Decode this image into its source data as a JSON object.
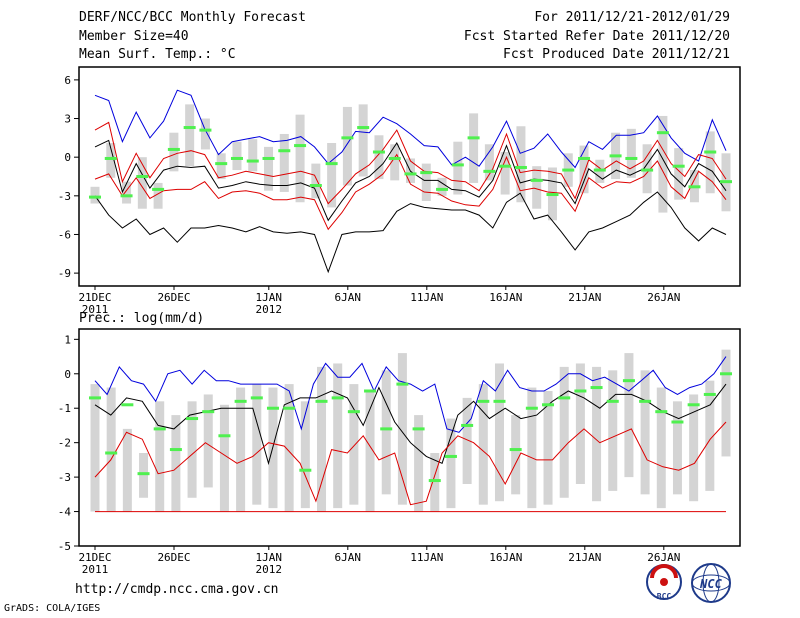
{
  "header": {
    "title": "DERF/NCC/BCC Monthly Forecast",
    "member_size": "Member Size=40",
    "variable": "Mean Surf. Temp.: °C",
    "period": "For 2011/12/21-2012/01/29",
    "started": "Fcst Started Refer Date 2011/12/20",
    "produced": "Fcst Produced Date 2011/12/21"
  },
  "footer": {
    "url": "http://cmdp.ncc.cma.gov.cn",
    "grads": "GrADS: COLA/IGES",
    "logo_bcc": "BCC",
    "logo_ncc": "NCC"
  },
  "colors": {
    "box": "#d4d4d4",
    "mean": "#000000",
    "upper": "#0000dd",
    "lower": "#dd0000",
    "median": "#4ff04f"
  },
  "chart_data": [
    {
      "type": "line",
      "title": "Mean Surf. Temp.: °C",
      "x_tick_labels": [
        "21DEC",
        "26DEC",
        "1JAN",
        "6JAN",
        "11JAN",
        "16JAN",
        "21JAN",
        "26JAN"
      ],
      "x_tick_days": [
        1,
        6,
        12,
        17,
        22,
        27,
        32,
        37
      ],
      "x_year_labels": [
        {
          "day": 1,
          "label": "2011"
        },
        {
          "day": 12,
          "label": "2012"
        }
      ],
      "ylim": [
        -10,
        7
      ],
      "yticks": [
        -9,
        -6,
        -3,
        0,
        3,
        6
      ],
      "days": 40,
      "series": [
        {
          "name": "upper",
          "values": [
            4.8,
            4.4,
            1.2,
            3.5,
            1.5,
            2.8,
            5.2,
            4.8,
            2.2,
            0.2,
            1.2,
            1.4,
            1.6,
            1.2,
            1.3,
            1.6,
            0.8,
            -0.5,
            0.4,
            2.0,
            1.9,
            3.1,
            2.6,
            1.8,
            0.9,
            0.8,
            -0.6,
            0,
            -0.7,
            0.8,
            2.8,
            0.3,
            0.7,
            1.8,
            0.4,
            -0.8,
            1.2,
            0.6,
            1.7,
            1.7,
            1.9,
            3.2,
            1.5,
            0.3,
            -0.3,
            2.9,
            0.5
          ]
        },
        {
          "name": "mean",
          "values": [
            0.8,
            1.3,
            -2.7,
            -0.5,
            -2.4,
            -1.0,
            -0.7,
            -0.8,
            -0.7,
            -2.4,
            -2.2,
            -1.9,
            -2.1,
            -2.2,
            -2.2,
            -2.0,
            -2.4,
            -4.9,
            -3.4,
            -2.0,
            -1.5,
            -0.5,
            1.1,
            -1.1,
            -1.8,
            -1.8,
            -2.5,
            -2.6,
            -3.1,
            -1.8,
            0.9,
            -2.0,
            -1.7,
            -1.8,
            -2.0,
            -3.6,
            -0.9,
            -1.7,
            -1.0,
            -1.4,
            -0.9,
            0.6,
            -1.3,
            -2.3,
            -0.5,
            -1.1,
            -2.6
          ]
        },
        {
          "name": "lower_red",
          "values": [
            -1.7,
            -1.3,
            -3.0,
            -1.6,
            -3.2,
            -2.6,
            -2.5,
            -2.5,
            -1.9,
            -3.2,
            -2.7,
            -2.6,
            -2.8,
            -3.3,
            -3.3,
            -3.1,
            -3.3,
            -5.6,
            -4.3,
            -2.7,
            -2.1,
            -1.3,
            0.2,
            -2.1,
            -2.7,
            -2.8,
            -3.4,
            -3.7,
            -3.8,
            -2.5,
            0.0,
            -2.6,
            -2.4,
            -2.7,
            -2.8,
            -4.2,
            -1.6,
            -2.4,
            -1.9,
            -2.0,
            -1.5,
            -0.3,
            -2.3,
            -3.2,
            -1.1,
            -1.9,
            -3.3
          ]
        },
        {
          "name": "upper_red",
          "values": [
            2.1,
            2.7,
            -1.9,
            0.3,
            -1.6,
            -0.1,
            0.3,
            0.5,
            0.2,
            -1.6,
            -1.4,
            -1.1,
            -1.3,
            -1.5,
            -1.3,
            -1.1,
            -1.4,
            -3.6,
            -2.5,
            -1.3,
            -0.6,
            0.6,
            2.1,
            -0.3,
            -1.1,
            -1.2,
            -1.8,
            -1.9,
            -2.6,
            -0.9,
            1.8,
            -1.2,
            -1.0,
            -1.1,
            -1.3,
            -3.2,
            -0.2,
            -1.0,
            -0.3,
            -0.9,
            -0.3,
            1.3,
            -0.5,
            -1.5,
            0.2,
            -0.1,
            -1.7
          ]
        },
        {
          "name": "lower",
          "values": [
            -3.0,
            -4.5,
            -5.5,
            -4.8,
            -6.0,
            -5.5,
            -6.6,
            -5.5,
            -5.5,
            -5.3,
            -5.5,
            -5.8,
            -5.4,
            -5.8,
            -5.9,
            -5.8,
            -6.0,
            -8.9,
            -6.0,
            -5.8,
            -5.8,
            -5.7,
            -4.2,
            -3.6,
            -3.9,
            -4.0,
            -4.1,
            -4.1,
            -4.5,
            -5.5,
            -3.5,
            -2.8,
            -4.8,
            -4.5,
            -5.8,
            -7.2,
            -5.8,
            -5.5,
            -5.0,
            -4.5,
            -3.5,
            -2.7,
            -3.9,
            -5.5,
            -6.5,
            -5.5,
            -6.0
          ]
        },
        {
          "name": "median",
          "values": [
            -3.1,
            -0.1,
            -3.0,
            -1.5,
            -2.5,
            0.6,
            2.3,
            2.1,
            -0.5,
            -0.1,
            -0.3,
            -0.1,
            0.5,
            0.9,
            -2.2,
            -0.5,
            1.5,
            2.3,
            0.4,
            -0.1,
            -1.3,
            -1.2,
            -2.5,
            -0.6,
            1.5,
            -1.1,
            -0.7,
            -0.8,
            -1.8,
            -2.9,
            -1.0,
            -0.1,
            -1.0,
            0.1,
            -0.1,
            -1.0,
            1.9,
            -0.7,
            -2.3,
            0.4,
            -1.9
          ]
        }
      ],
      "box_low": [
        -3.6,
        -1.6,
        -3.6,
        -4.0,
        -4.0,
        -1.1,
        -0.7,
        0.6,
        -1.7,
        -1.0,
        -1.1,
        -2.6,
        -2.7,
        -3.5,
        -3.2,
        -3.9,
        -2.2,
        -1.5,
        -1.7,
        -1.8,
        -2.0,
        -3.4,
        -3.0,
        -2.9,
        -2.0,
        -1.8,
        -2.9,
        -3.5,
        -4.0,
        -4.9,
        -2.3,
        -2.8,
        -2.0,
        -1.7,
        -1.6,
        -2.8,
        -4.3,
        -3.3,
        -3.5,
        -2.8,
        -4.2
      ],
      "box_high": [
        -2.3,
        1.1,
        -1.9,
        0.0,
        -2.0,
        1.9,
        4.1,
        3.0,
        0.3,
        1.2,
        1.4,
        0.8,
        1.8,
        3.3,
        -0.5,
        1.1,
        3.9,
        4.1,
        1.7,
        1.0,
        -0.1,
        -0.5,
        -1.6,
        1.2,
        3.4,
        1.0,
        0.4,
        2.4,
        -0.7,
        -0.8,
        0.3,
        0.9,
        -0.2,
        1.9,
        2.2,
        1.0,
        3.2,
        0.7,
        -1.0,
        2.0,
        0.3
      ]
    },
    {
      "type": "line",
      "title": "Prec.: log(mm/d)",
      "x_tick_labels": [
        "21DEC",
        "26DEC",
        "1JAN",
        "6JAN",
        "11JAN",
        "16JAN",
        "21JAN",
        "26JAN"
      ],
      "x_tick_days": [
        1,
        6,
        12,
        17,
        22,
        27,
        32,
        37
      ],
      "x_year_labels": [
        {
          "day": 1,
          "label": "2011"
        },
        {
          "day": 12,
          "label": "2012"
        }
      ],
      "ylim": [
        -5,
        1.3
      ],
      "yticks": [
        -5,
        -4,
        -3,
        -2,
        -1,
        0,
        1
      ],
      "days": 40,
      "series": [
        {
          "name": "upper",
          "values": [
            -0.2,
            -0.6,
            0.2,
            -0.2,
            -0.3,
            -0.8,
            0.0,
            0.1,
            -0.3,
            0.1,
            -0.2,
            -0.2,
            -0.3,
            -0.3,
            -0.3,
            -0.3,
            -0.5,
            -1.6,
            -0.3,
            0.3,
            -0.1,
            -0.1,
            0.3,
            -0.5,
            0.2,
            -0.2,
            -0.3,
            -0.5,
            -0.3,
            -1.6,
            -1.7,
            -1.3,
            -0.2,
            -0.5,
            0.1,
            -0.4,
            -0.5,
            -0.5,
            -0.3,
            0.0,
            0.0,
            -0.2,
            -0.1,
            -0.3,
            -0.5,
            -0.2,
            0.1,
            -0.4,
            -0.6,
            -0.4,
            -0.3,
            0.0,
            0.5
          ]
        },
        {
          "name": "mean",
          "values": [
            -0.9,
            -1.2,
            -0.7,
            -0.8,
            -1.5,
            -1.6,
            -1.2,
            -1.1,
            -1.0,
            -1.0,
            -1.0,
            -2.6,
            -0.9,
            -0.7,
            -0.7,
            -0.5,
            -0.7,
            -1.5,
            -0.4,
            -1.4,
            -2.0,
            -2.4,
            -2.6,
            -1.2,
            -0.8,
            -1.3,
            -1.0,
            -1.3,
            -1.2,
            -0.8,
            -0.5,
            -0.7,
            -1.0,
            -0.6,
            -0.6,
            -0.8,
            -1.1,
            -1.3,
            -1.1,
            -0.9,
            -0.3
          ]
        },
        {
          "name": "lower_red",
          "values": [
            -3.0,
            -2.5,
            -1.7,
            -1.9,
            -2.9,
            -2.8,
            -2.4,
            -2.0,
            -2.3,
            -2.6,
            -2.4,
            -2.0,
            -2.1,
            -2.6,
            -3.7,
            -2.2,
            -2.3,
            -1.8,
            -2.5,
            -2.3,
            -3.8,
            -3.7,
            -2.3,
            -1.8,
            -2.0,
            -2.4,
            -3.2,
            -2.3,
            -2.5,
            -2.5,
            -2.0,
            -1.6,
            -2.0,
            -1.8,
            -1.6,
            -2.5,
            -2.7,
            -2.8,
            -2.6,
            -1.9,
            -1.4
          ]
        },
        {
          "name": "floor",
          "values": [
            -4,
            -4
          ]
        },
        {
          "name": "median",
          "values": [
            -0.7,
            -2.3,
            -0.9,
            -2.9,
            -1.6,
            -2.2,
            -1.3,
            -1.1,
            -1.8,
            -0.8,
            -0.7,
            -1.0,
            -1.0,
            -2.8,
            -0.8,
            -0.7,
            -1.1,
            -0.5,
            -1.6,
            -0.3,
            -1.6,
            -3.1,
            -2.4,
            -1.5,
            -0.8,
            -0.8,
            -2.2,
            -1.0,
            -0.9,
            -0.7,
            -0.5,
            -0.4,
            -0.8,
            -0.2,
            -0.8,
            -1.1,
            -1.4,
            -0.9,
            -0.6,
            0.0
          ]
        }
      ],
      "box_low": [
        -4.0,
        -4.0,
        -4.0,
        -3.6,
        -4.0,
        -4.0,
        -3.6,
        -3.3,
        -4.0,
        -4.0,
        -3.8,
        -3.9,
        -4.0,
        -3.9,
        -4.0,
        -3.9,
        -3.8,
        -4.0,
        -3.5,
        -3.8,
        -4.0,
        -4.0,
        -3.9,
        -3.2,
        -3.8,
        -3.7,
        -3.5,
        -3.9,
        -3.8,
        -3.6,
        -3.2,
        -3.7,
        -3.4,
        -3.0,
        -3.5,
        -3.9,
        -3.5,
        -3.7,
        -3.4,
        -2.4
      ],
      "box_high": [
        -0.3,
        -0.4,
        -1.6,
        -2.3,
        -0.8,
        -1.2,
        -0.8,
        -0.6,
        -0.9,
        -0.4,
        -0.3,
        -0.4,
        -0.3,
        -0.8,
        0.2,
        0.3,
        -0.3,
        -0.5,
        0.1,
        0.6,
        -1.2,
        -2.3,
        -1.3,
        -0.7,
        -0.3,
        0.3,
        -1.2,
        -0.4,
        -0.5,
        0.2,
        0.3,
        0.2,
        0.1,
        0.6,
        0.1,
        -0.4,
        -0.8,
        -0.6,
        -0.2,
        0.7
      ]
    }
  ]
}
